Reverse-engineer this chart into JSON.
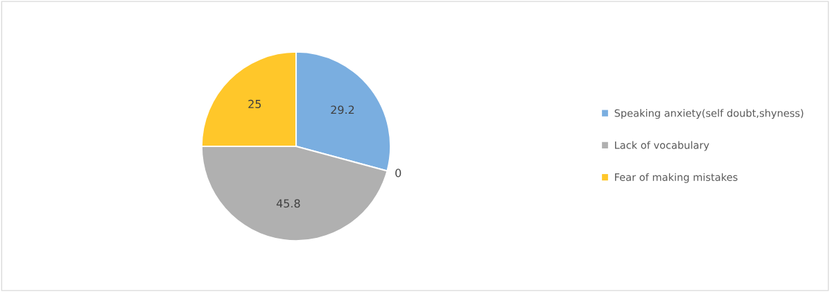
{
  "chart_data": {
    "type": "pie",
    "categories": [
      "Speaking anxiety(self doubt,shyness)",
      null,
      "Lack of vocabulary",
      "Fear of making mistakes"
    ],
    "values": [
      29.2,
      0,
      45.8,
      25
    ],
    "colors": [
      "#7aaee0",
      "#ed7d31",
      "#b0b0b0",
      "#ffc72a"
    ],
    "value_labels": [
      "29.2",
      "0",
      "45.8",
      "25"
    ],
    "legend": "right"
  }
}
